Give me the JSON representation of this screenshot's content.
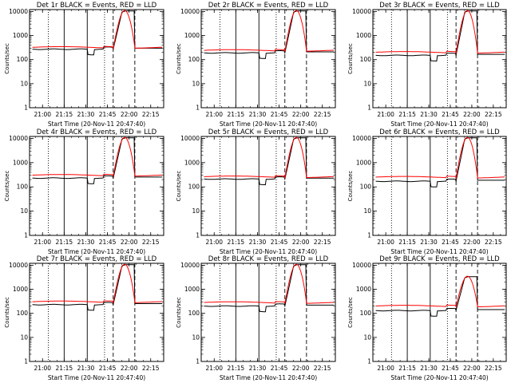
{
  "panels": [
    {
      "title": "Det 1r BLACK = Events, RED = LLD",
      "black_base": 270,
      "red_base": 320,
      "peak": 11000
    },
    {
      "title": "Det 2r BLACK = Events, RED = LLD",
      "black_base": 190,
      "red_base": 240,
      "peak": 11000
    },
    {
      "title": "Det 3r BLACK = Events, RED = LLD",
      "black_base": 150,
      "red_base": 200,
      "peak": 11000
    },
    {
      "title": "Det 4r BLACK = Events, RED = LLD",
      "black_base": 230,
      "red_base": 300,
      "peak": 11000
    },
    {
      "title": "Det 5r BLACK = Events, RED = LLD",
      "black_base": 210,
      "red_base": 260,
      "peak": 11000
    },
    {
      "title": "Det 6r BLACK = Events, RED = LLD",
      "black_base": 170,
      "red_base": 250,
      "peak": 11000
    },
    {
      "title": "Det 7r BLACK = Events, RED = LLD",
      "black_base": 230,
      "red_base": 300,
      "peak": 11000
    },
    {
      "title": "Det 8r BLACK = Events, RED = LLD",
      "black_base": 200,
      "red_base": 280,
      "peak": 11000
    },
    {
      "title": "Det 9r BLACK = Events, RED = LLD",
      "black_base": 130,
      "red_base": 200,
      "peak": 3500
    }
  ],
  "chart_data": {
    "type": "line",
    "ylabel": "Counts/sec",
    "xlabel": "Start Time (20-Nov-11 20:47:40)",
    "yscale": "log",
    "ylim": [
      1,
      12000
    ],
    "xlim": [
      "20:51",
      "22:24"
    ],
    "x_ticks": [
      "21:00",
      "21:15",
      "21:30",
      "21:45",
      "22:00",
      "22:15"
    ],
    "y_ticks": [
      "1",
      "10",
      "100",
      "1000",
      "10000"
    ],
    "y_tick_values": [
      1,
      10,
      100,
      1000,
      10000
    ],
    "series": [
      {
        "color": "#000000"
      },
      {
        "color": "#ff0000"
      }
    ],
    "vertical_lines": [
      {
        "time": "21:04",
        "style": "dotted"
      },
      {
        "time": "21:15",
        "style": "solid"
      },
      {
        "time": "21:31",
        "style": "solid"
      },
      {
        "time": "21:43",
        "style": "dotted"
      },
      {
        "time": "21:49",
        "style": "dashed"
      },
      {
        "time": "22:04",
        "style": "dashed"
      }
    ]
  }
}
